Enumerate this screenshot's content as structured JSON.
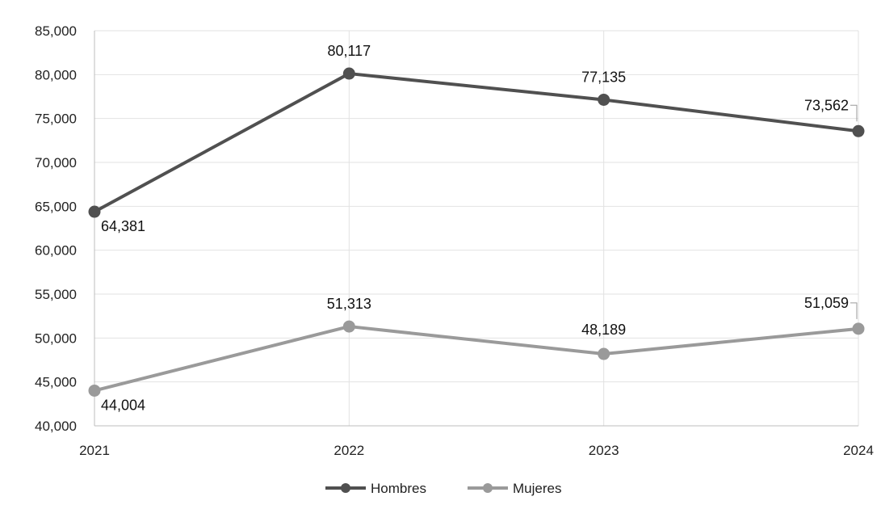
{
  "chart_data": {
    "type": "line",
    "categories": [
      "2021",
      "2022",
      "2023",
      "2024"
    ],
    "ylim": [
      40000,
      85000
    ],
    "yticks": [
      40000,
      45000,
      50000,
      55000,
      60000,
      65000,
      70000,
      75000,
      80000,
      85000
    ],
    "ytick_labels": [
      "40,000",
      "45,000",
      "50,000",
      "55,000",
      "60,000",
      "65,000",
      "70,000",
      "75,000",
      "80,000",
      "85,000"
    ],
    "grid": "horizontal",
    "legend_position": "bottom",
    "series": [
      {
        "name": "Hombres",
        "color": "#505050",
        "values": [
          64381,
          80117,
          77135,
          73562
        ],
        "labels": [
          "64,381",
          "80,117",
          "77,135",
          "73,562"
        ]
      },
      {
        "name": "Mujeres",
        "color": "#9a9a9a",
        "values": [
          44004,
          51313,
          48189,
          51059
        ],
        "labels": [
          "44,004",
          "51,313",
          "48,189",
          "51,059"
        ]
      }
    ]
  }
}
